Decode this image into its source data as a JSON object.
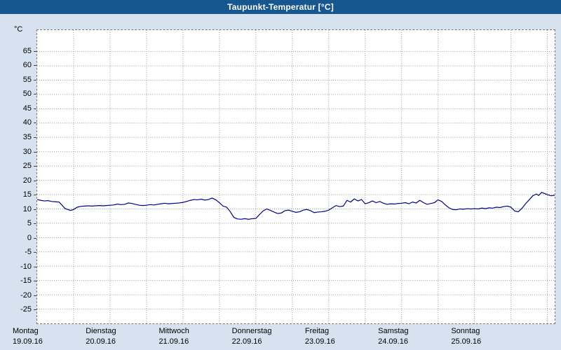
{
  "window": {
    "title": "Taupunkt-Temperatur [°C]"
  },
  "colors": {
    "titlebar_bg": "#17578f",
    "titlebar_text": "#ffffff",
    "page_bg": "#d6e2ef",
    "plot_bg": "#ffffff",
    "grid": "#9a9a9a",
    "line": "#00008b",
    "axis_text": "#000000"
  },
  "chart_data": {
    "type": "line",
    "title": "Taupunkt-Temperatur [°C]",
    "xlabel": "",
    "ylabel": "°C",
    "ylim": [
      -30,
      72.5
    ],
    "yticks": [
      65,
      60,
      55,
      50,
      45,
      40,
      35,
      30,
      25,
      20,
      15,
      10,
      5,
      0,
      -5,
      -10,
      -15,
      -20,
      -25
    ],
    "xlim": [
      0,
      7.1
    ],
    "x_unit": "days",
    "x_gridline_step_days": 0.5,
    "grid": true,
    "legend_position": "none",
    "x_day_labels": [
      {
        "name": "Montag",
        "date": "19.09.16"
      },
      {
        "name": "Dienstag",
        "date": "20.09.16"
      },
      {
        "name": "Mittwoch",
        "date": "21.09.16"
      },
      {
        "name": "Donnerstag",
        "date": "22.09.16"
      },
      {
        "name": "Freitag",
        "date": "23.09.16"
      },
      {
        "name": "Samstag",
        "date": "24.09.16"
      },
      {
        "name": "Sonntag",
        "date": "25.09.16"
      }
    ],
    "series": [
      {
        "name": "Taupunkt-Temperatur",
        "color": "#00008b",
        "x": [
          0,
          0.05,
          0.1,
          0.15,
          0.2,
          0.25,
          0.3,
          0.33,
          0.38,
          0.42,
          0.46,
          0.5,
          0.55,
          0.6,
          0.65,
          0.7,
          0.75,
          0.8,
          0.85,
          0.9,
          0.95,
          1,
          1.05,
          1.1,
          1.15,
          1.2,
          1.25,
          1.3,
          1.35,
          1.4,
          1.45,
          1.5,
          1.55,
          1.6,
          1.65,
          1.7,
          1.75,
          1.8,
          1.85,
          1.9,
          1.95,
          2,
          2.05,
          2.1,
          2.15,
          2.2,
          2.25,
          2.3,
          2.35,
          2.4,
          2.45,
          2.5,
          2.55,
          2.6,
          2.65,
          2.7,
          2.75,
          2.8,
          2.85,
          2.9,
          2.95,
          3,
          3.05,
          3.1,
          3.15,
          3.2,
          3.25,
          3.3,
          3.35,
          3.4,
          3.45,
          3.5,
          3.55,
          3.6,
          3.65,
          3.7,
          3.75,
          3.8,
          3.85,
          3.9,
          3.95,
          4,
          4.05,
          4.1,
          4.15,
          4.2,
          4.25,
          4.3,
          4.35,
          4.4,
          4.45,
          4.5,
          4.55,
          4.6,
          4.65,
          4.7,
          4.75,
          4.8,
          4.85,
          4.9,
          4.95,
          5,
          5.05,
          5.1,
          5.15,
          5.2,
          5.25,
          5.3,
          5.35,
          5.4,
          5.45,
          5.5,
          5.55,
          5.6,
          5.65,
          5.7,
          5.75,
          5.8,
          5.85,
          5.9,
          5.95,
          6,
          6.05,
          6.1,
          6.15,
          6.2,
          6.25,
          6.3,
          6.35,
          6.4,
          6.45,
          6.5,
          6.55,
          6.6,
          6.65,
          6.7,
          6.75,
          6.8,
          6.85,
          6.88,
          6.92,
          6.96,
          7.0,
          7.05,
          7.1
        ],
        "y": [
          13.3,
          13.0,
          12.8,
          12.9,
          12.6,
          12.5,
          12.4,
          11.6,
          10.2,
          9.8,
          9.5,
          9.8,
          10.6,
          10.9,
          11.0,
          11.1,
          11.0,
          11.1,
          11.2,
          11.1,
          11.2,
          11.3,
          11.4,
          11.7,
          11.5,
          11.6,
          12.1,
          11.9,
          11.6,
          11.3,
          11.2,
          11.3,
          11.5,
          11.4,
          11.6,
          11.8,
          12.0,
          11.8,
          11.9,
          12.0,
          12.1,
          12.3,
          12.6,
          13.0,
          13.3,
          13.2,
          13.4,
          13.1,
          13.3,
          13.8,
          13.2,
          12.2,
          11.0,
          10.6,
          9.0,
          7.0,
          6.5,
          6.4,
          6.6,
          6.4,
          6.6,
          6.7,
          8.0,
          9.3,
          10.0,
          9.5,
          8.9,
          8.4,
          8.6,
          9.4,
          9.6,
          9.2,
          8.8,
          9.0,
          9.6,
          9.8,
          9.4,
          8.7,
          8.9,
          9.0,
          9.2,
          9.6,
          10.4,
          11.2,
          10.8,
          11.0,
          13.0,
          12.4,
          13.5,
          12.8,
          13.3,
          11.8,
          12.2,
          12.8,
          12.2,
          12.6,
          12.0,
          11.6,
          11.8,
          11.7,
          11.9,
          12.0,
          12.2,
          11.8,
          12.4,
          12.1,
          13.0,
          12.2,
          11.6,
          11.9,
          12.2,
          13.2,
          12.6,
          11.4,
          10.4,
          9.8,
          9.7,
          10.0,
          9.9,
          10.1,
          10.0,
          10.1,
          10.0,
          10.3,
          10.1,
          10.4,
          10.3,
          10.6,
          10.5,
          10.8,
          11.0,
          10.6,
          9.3,
          9.0,
          10.2,
          11.8,
          13.2,
          14.6,
          15.2,
          14.7,
          15.8,
          15.4,
          15.0,
          14.6,
          14.8
        ]
      }
    ]
  }
}
